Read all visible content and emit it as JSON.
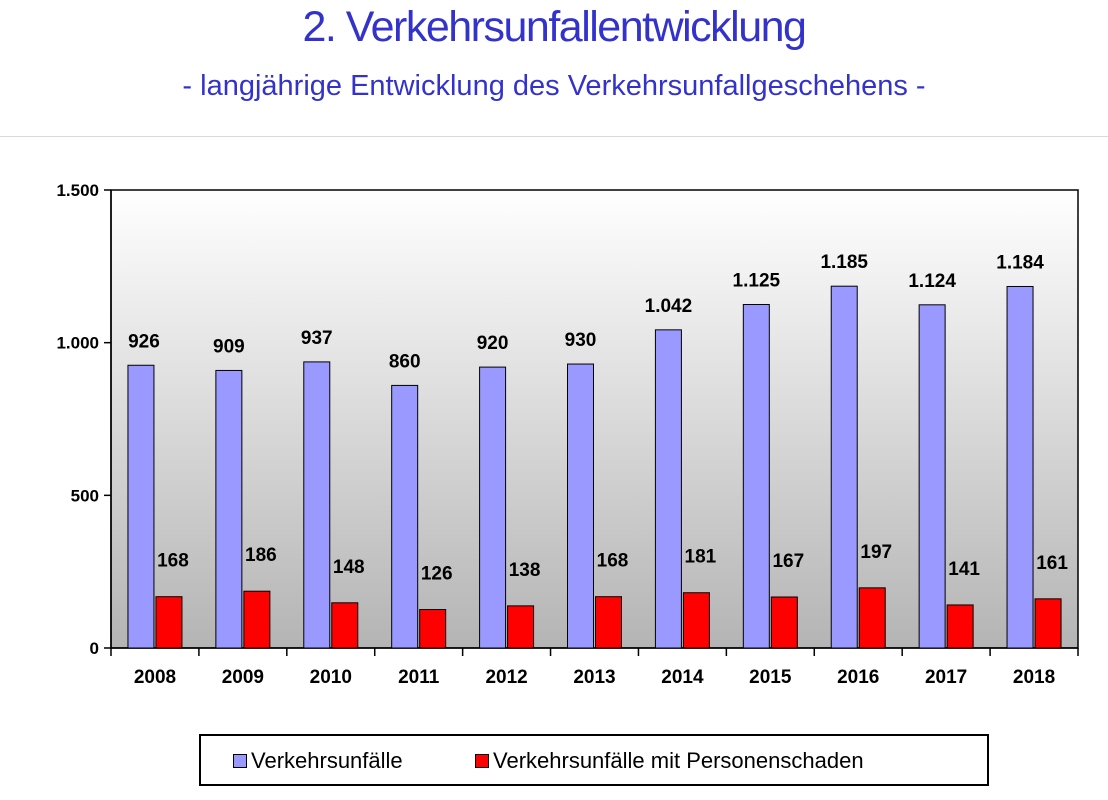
{
  "header": {
    "title": "2. Verkehrsunfallentwicklung",
    "subtitle": "- langjährige Entwicklung des Verkehrsunfallgeschehens -"
  },
  "chart_data": {
    "type": "bar",
    "categories": [
      "2008",
      "2009",
      "2010",
      "2011",
      "2012",
      "2013",
      "2014",
      "2015",
      "2016",
      "2017",
      "2018"
    ],
    "series": [
      {
        "name": "Verkehrsunfälle",
        "values": [
          926,
          909,
          937,
          860,
          920,
          930,
          1042,
          1125,
          1185,
          1124,
          1184
        ],
        "labels": [
          "926",
          "909",
          "937",
          "860",
          "920",
          "930",
          "1.042",
          "1.125",
          "1.185",
          "1.124",
          "1.184"
        ],
        "color": "#9999ff"
      },
      {
        "name": "Verkehrsunfälle mit Personenschaden",
        "values": [
          168,
          186,
          148,
          126,
          138,
          168,
          181,
          167,
          197,
          141,
          161
        ],
        "labels": [
          "168",
          "186",
          "148",
          "126",
          "138",
          "168",
          "181",
          "167",
          "197",
          "141",
          "161"
        ],
        "color": "#ff0000"
      }
    ],
    "yticks": [
      0,
      500,
      1000,
      1500
    ],
    "ytick_labels": [
      "0",
      "500",
      "1.000",
      "1.500"
    ],
    "ylim": [
      0,
      1500
    ],
    "grid": false,
    "plot_background": "gradient-gray",
    "legend_position": "bottom"
  }
}
